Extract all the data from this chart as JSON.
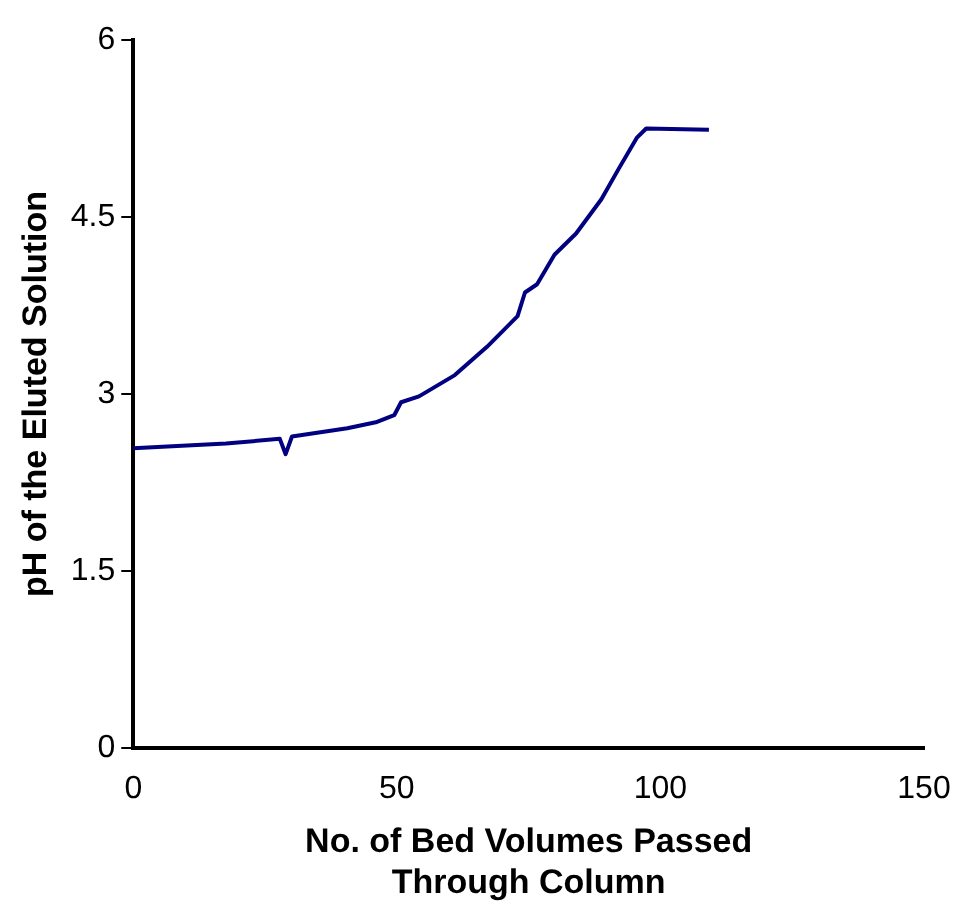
{
  "chart_data": {
    "type": "line",
    "xlabel": "No. of Bed Volumes Passed Through Column",
    "ylabel": "pH of the Eluted Solution",
    "x": [
      0,
      17.6,
      27.8,
      28.9,
      30.1,
      40.6,
      46,
      49.5,
      50.8,
      54.2,
      61,
      67.1,
      72.9,
      74.3,
      76.6,
      79.9,
      84,
      88.8,
      92.1,
      95.5,
      97.3,
      109.2
    ],
    "series": [
      {
        "color": "#000080",
        "values": [
          2.54,
          2.58,
          2.62,
          2.49,
          2.64,
          2.71,
          2.76,
          2.82,
          2.93,
          2.98,
          3.16,
          3.4,
          3.66,
          3.86,
          3.93,
          4.18,
          4.36,
          4.65,
          4.91,
          5.17,
          5.25,
          5.24
        ]
      }
    ],
    "xlim": [
      0,
      150
    ],
    "xticks": [
      0,
      50,
      100,
      150
    ],
    "ylim": [
      0,
      6
    ],
    "yticks": [
      0,
      1.5,
      3,
      4.5,
      6
    ],
    "grid": false,
    "legend": false,
    "marker": "none",
    "line_style": "solid"
  }
}
